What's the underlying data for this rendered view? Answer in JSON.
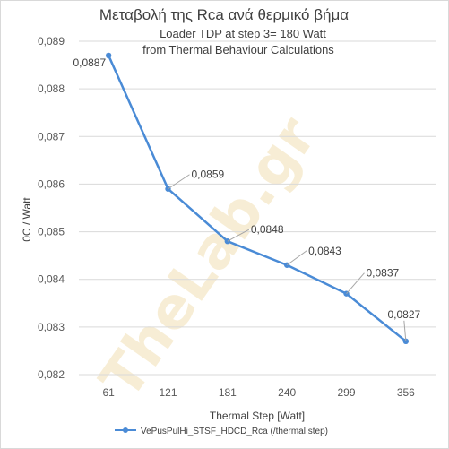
{
  "chart_data": {
    "type": "line",
    "title": "Μεταβολή της Rca ανά θερμικό βήμα",
    "subtitle_lines": [
      "Loader TDP at step 3= 180 Watt",
      "from  Thermal  Behaviour Calculations"
    ],
    "xlabel": "Thermal Step [Watt]",
    "ylabel": "0C / Watt",
    "categories": [
      "61",
      "121",
      "181",
      "240",
      "299",
      "356"
    ],
    "series": [
      {
        "name": "VePusPulHi_STSF_HDCD_Rca (/thermal step)",
        "values": [
          0.0887,
          0.0859,
          0.0848,
          0.0843,
          0.0837,
          0.0827
        ],
        "data_labels": [
          "0,0887",
          "0,0859",
          "0,0848",
          "0,0843",
          "0,0837",
          "0,0827"
        ],
        "color": "#4a8bd6"
      }
    ],
    "y_ticks": [
      "0,082",
      "0,083",
      "0,084",
      "0,085",
      "0,086",
      "0,087",
      "0,088",
      "0,089"
    ],
    "ylim": [
      0.082,
      0.089
    ],
    "grid": true,
    "legend_position": "bottom",
    "watermark": "TheLab.gr"
  }
}
